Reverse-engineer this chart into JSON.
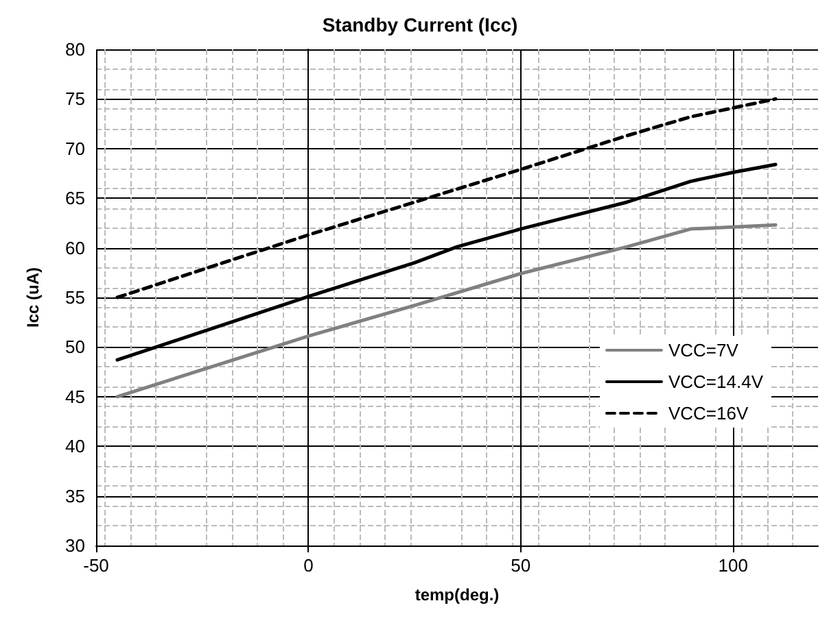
{
  "chart_data": {
    "type": "line",
    "title": "Standby Current (Icc)",
    "xlabel": "temp(deg.)",
    "ylabel": "Icc (uA)",
    "xlim": [
      -50,
      120
    ],
    "xticks": [
      -50,
      0,
      50,
      100
    ],
    "ylim": [
      30,
      80
    ],
    "yticks": [
      30,
      35,
      40,
      45,
      50,
      55,
      60,
      65,
      70,
      75,
      80
    ],
    "grid": true,
    "legend": "right",
    "marker": "none",
    "series": [
      {
        "name": "VCC=7V",
        "color": "#808080",
        "line_style": "solid",
        "x": [
          -45,
          0,
          25,
          50,
          75,
          90,
          100,
          110
        ],
        "values": [
          45.0,
          51.1,
          54.2,
          57.4,
          60.1,
          61.9,
          62.1,
          62.3
        ]
      },
      {
        "name": "VCC=14.4V",
        "color": "#000000",
        "line_style": "solid",
        "x": [
          -45,
          0,
          25,
          35,
          50,
          75,
          90,
          100,
          110
        ],
        "values": [
          48.7,
          55.1,
          58.5,
          60.1,
          61.9,
          64.6,
          66.7,
          67.6,
          68.4
        ]
      },
      {
        "name": "VCC=16V",
        "color": "#000000",
        "line_style": "dashed",
        "x": [
          -45,
          0,
          25,
          50,
          75,
          90,
          100,
          110
        ],
        "values": [
          55.0,
          61.3,
          64.6,
          67.9,
          71.3,
          73.2,
          74.1,
          75.0
        ]
      }
    ]
  }
}
